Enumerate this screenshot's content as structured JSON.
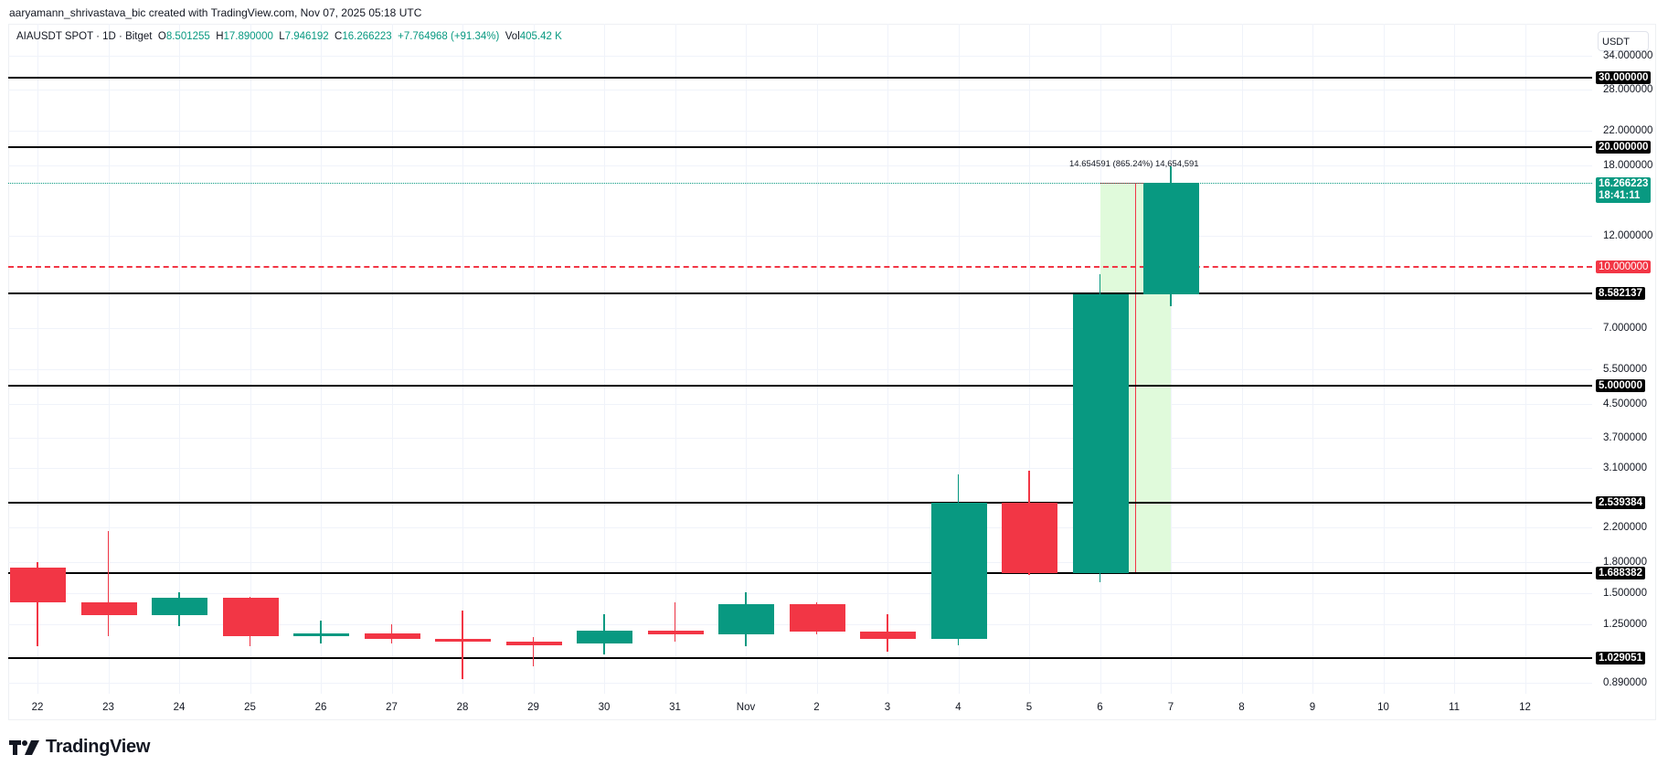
{
  "credit": "aaryamann_shrivastava_bic created with TradingView.com, Nov 07, 2025 05:18 UTC",
  "legend": {
    "symbol": "AIAUSDT SPOT · 1D · Bitget",
    "o_label": "O",
    "o": "8.501255",
    "h_label": "H",
    "h": "17.890000",
    "l_label": "L",
    "l": "7.946192",
    "c_label": "C",
    "c": "16.266223",
    "change": "+7.764968 (+91.34%)",
    "vol_label": "Vol",
    "vol": "405.42 K"
  },
  "axis": {
    "unit": "USDT",
    "ticks": [
      "34.000000",
      "28.000000",
      "22.000000",
      "18.000000",
      "12.000000",
      "7.000000",
      "5.500000",
      "4.500000",
      "3.700000",
      "3.100000",
      "2.200000",
      "1.800000",
      "1.500000",
      "1.250000",
      "0.890000"
    ],
    "current_price": "16.266223",
    "countdown": "18:41:11",
    "alert_price": "10.000000"
  },
  "hlines": [
    "30.000000",
    "20.000000",
    "8.582137",
    "5.000000",
    "2.539384",
    "1.688382",
    "1.029051"
  ],
  "measure_label": "14.654591 (865.24%) 14,654,591",
  "xaxis": [
    "22",
    "23",
    "24",
    "25",
    "26",
    "27",
    "28",
    "29",
    "30",
    "31",
    "Nov",
    "2",
    "3",
    "4",
    "5",
    "6",
    "7",
    "8",
    "9",
    "10",
    "11",
    "12"
  ],
  "brand": "TradingView",
  "colors": {
    "up": "#089981",
    "down": "#f23645",
    "line": "#000000",
    "alert": "#f23645",
    "measure_fill": "#e0fadb"
  },
  "chart_data": {
    "type": "candlestick",
    "title": "AIAUSDT SPOT · 1D · Bitget",
    "xlabel": "",
    "ylabel": "USDT",
    "yscale": "log",
    "ylim": [
      0.85,
      36
    ],
    "categories": [
      "Oct 22",
      "Oct 23",
      "Oct 24",
      "Oct 25",
      "Oct 26",
      "Oct 27",
      "Oct 28",
      "Oct 29",
      "Oct 30",
      "Oct 31",
      "Nov 1",
      "Nov 2",
      "Nov 3",
      "Nov 4",
      "Nov 5",
      "Nov 6",
      "Nov 7"
    ],
    "ohlc": [
      {
        "o": 1.74,
        "h": 1.8,
        "l": 1.1,
        "c": 1.42
      },
      {
        "o": 1.42,
        "h": 2.15,
        "l": 1.17,
        "c": 1.32
      },
      {
        "o": 1.32,
        "h": 1.51,
        "l": 1.24,
        "c": 1.46
      },
      {
        "o": 1.46,
        "h": 1.47,
        "l": 1.1,
        "c": 1.17
      },
      {
        "o": 1.17,
        "h": 1.28,
        "l": 1.12,
        "c": 1.19
      },
      {
        "o": 1.19,
        "h": 1.25,
        "l": 1.12,
        "c": 1.15
      },
      {
        "o": 1.15,
        "h": 1.36,
        "l": 0.91,
        "c": 1.13
      },
      {
        "o": 1.13,
        "h": 1.16,
        "l": 0.98,
        "c": 1.11
      },
      {
        "o": 1.12,
        "h": 1.33,
        "l": 1.05,
        "c": 1.21
      },
      {
        "o": 1.21,
        "h": 1.42,
        "l": 1.13,
        "c": 1.18
      },
      {
        "o": 1.18,
        "h": 1.51,
        "l": 1.1,
        "c": 1.41
      },
      {
        "o": 1.41,
        "h": 1.42,
        "l": 1.18,
        "c": 1.2
      },
      {
        "o": 1.2,
        "h": 1.33,
        "l": 1.07,
        "c": 1.15
      },
      {
        "o": 1.15,
        "h": 3.0,
        "l": 1.11,
        "c": 2.54
      },
      {
        "o": 2.54,
        "h": 3.05,
        "l": 1.67,
        "c": 1.69
      },
      {
        "o": 1.69,
        "h": 9.6,
        "l": 1.6,
        "c": 8.5
      },
      {
        "o": 8.501255,
        "h": 17.89,
        "l": 7.946192,
        "c": 16.266223
      }
    ],
    "horizontal_levels": [
      30.0,
      20.0,
      8.582137,
      5.0,
      2.539384,
      1.688382,
      1.029051
    ],
    "alert_level": 10.0,
    "annotations": [
      "14.654591 (865.24%) 14,654,591"
    ]
  }
}
